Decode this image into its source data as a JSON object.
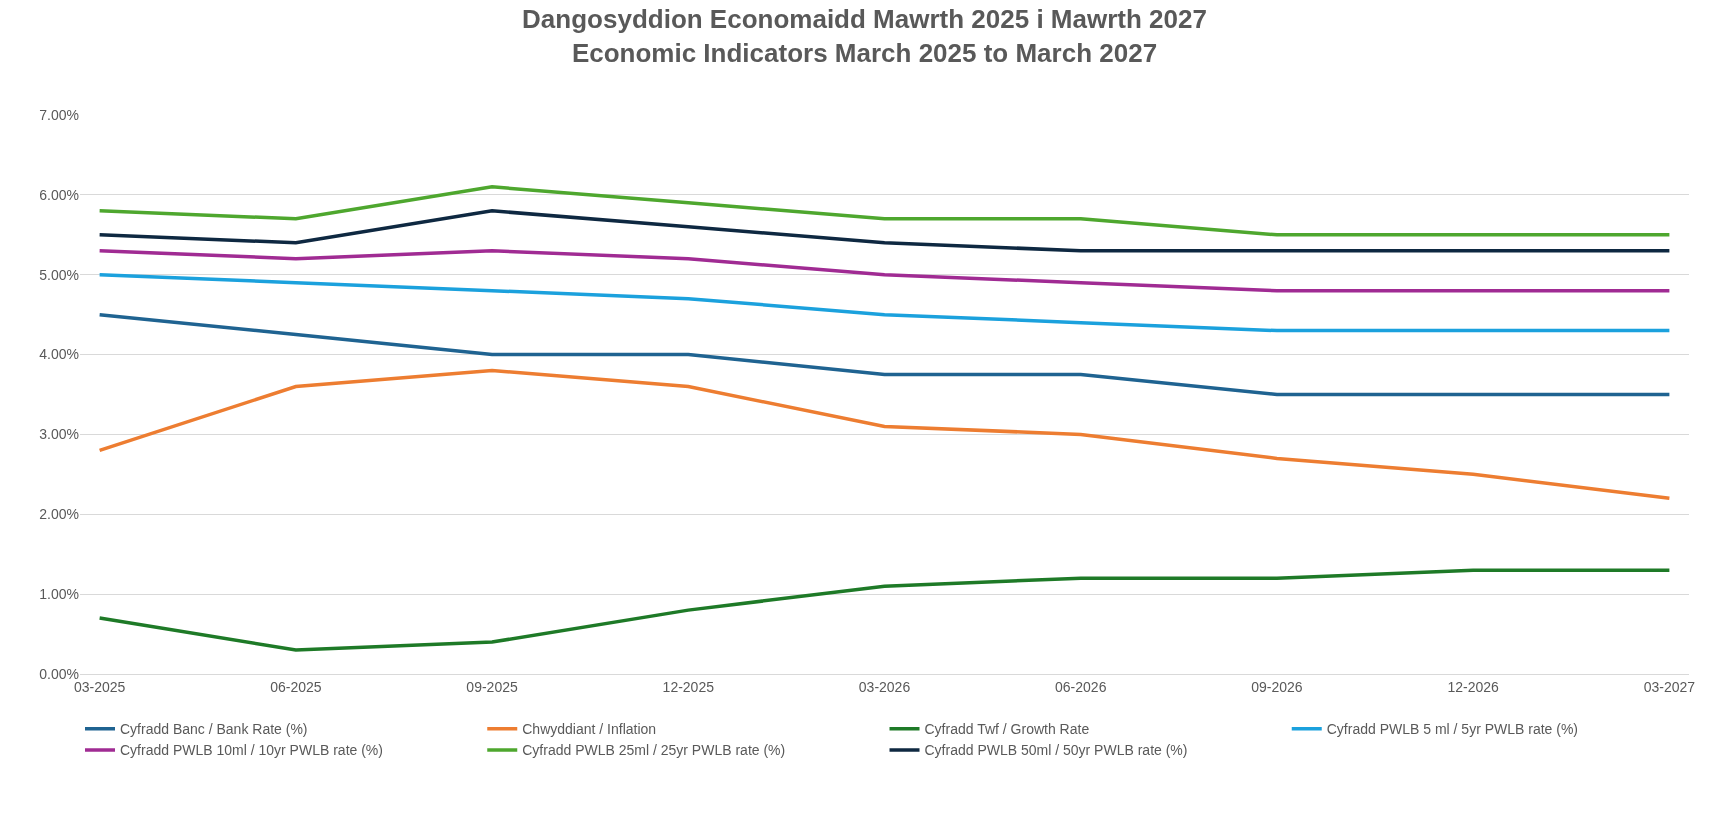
{
  "chart_data": {
    "type": "line",
    "title": "Dangosyddion Economaidd Mawrth 2025 i Mawrth 2027\nEconomic Indicators March 2025 to March 2027",
    "categories": [
      "03-2025",
      "06-2025",
      "09-2025",
      "12-2025",
      "03-2026",
      "06-2026",
      "09-2026",
      "12-2026",
      "03-2027"
    ],
    "series": [
      {
        "name": "Cyfradd Banc / Bank Rate (%)",
        "color": "#1f6391",
        "values": [
          4.5,
          4.25,
          4.0,
          4.0,
          3.75,
          3.75,
          3.5,
          3.5,
          3.5
        ]
      },
      {
        "name": "Chwyddiant / Inflation",
        "color": "#ed7d31",
        "values": [
          2.8,
          3.6,
          3.8,
          3.6,
          3.1,
          3.0,
          2.7,
          2.5,
          2.2
        ]
      },
      {
        "name": "Cyfradd Twf / Growth Rate",
        "color": "#1e7a27",
        "values": [
          0.7,
          0.3,
          0.4,
          0.8,
          1.1,
          1.2,
          1.2,
          1.3,
          1.3
        ]
      },
      {
        "name": "Cyfradd PWLB 5 ml / 5yr PWLB rate (%)",
        "color": "#1ba1dd",
        "values": [
          5.0,
          4.9,
          4.8,
          4.7,
          4.5,
          4.4,
          4.3,
          4.3,
          4.3
        ]
      },
      {
        "name": "Cyfradd PWLB 10ml / 10yr PWLB rate (%)",
        "color": "#a02b93",
        "values": [
          5.3,
          5.2,
          5.3,
          5.2,
          5.0,
          4.9,
          4.8,
          4.8,
          4.8
        ]
      },
      {
        "name": "Cyfradd PWLB 25ml / 25yr PWLB rate (%)",
        "color": "#4ea72e",
        "values": [
          5.8,
          5.7,
          6.1,
          5.9,
          5.7,
          5.7,
          5.5,
          5.5,
          5.5
        ]
      },
      {
        "name": "Cyfradd PWLB 50ml / 50yr PWLB rate (%)",
        "color": "#0e2841",
        "values": [
          5.5,
          5.4,
          5.8,
          5.6,
          5.4,
          5.3,
          5.3,
          5.3,
          5.3
        ]
      }
    ],
    "ylim": [
      0,
      7
    ],
    "yticks": [
      {
        "value": 0,
        "label": "0.00%"
      },
      {
        "value": 1,
        "label": "1.00%"
      },
      {
        "value": 2,
        "label": "2.00%"
      },
      {
        "value": 3,
        "label": "3.00%"
      },
      {
        "value": 4,
        "label": "4.00%"
      },
      {
        "value": 5,
        "label": "5.00%"
      },
      {
        "value": 6,
        "label": "6.00%"
      },
      {
        "value": 7,
        "label": "7.00%"
      }
    ],
    "grid": "y",
    "legend": "bottom",
    "marker": "none",
    "line_style": "solid"
  }
}
